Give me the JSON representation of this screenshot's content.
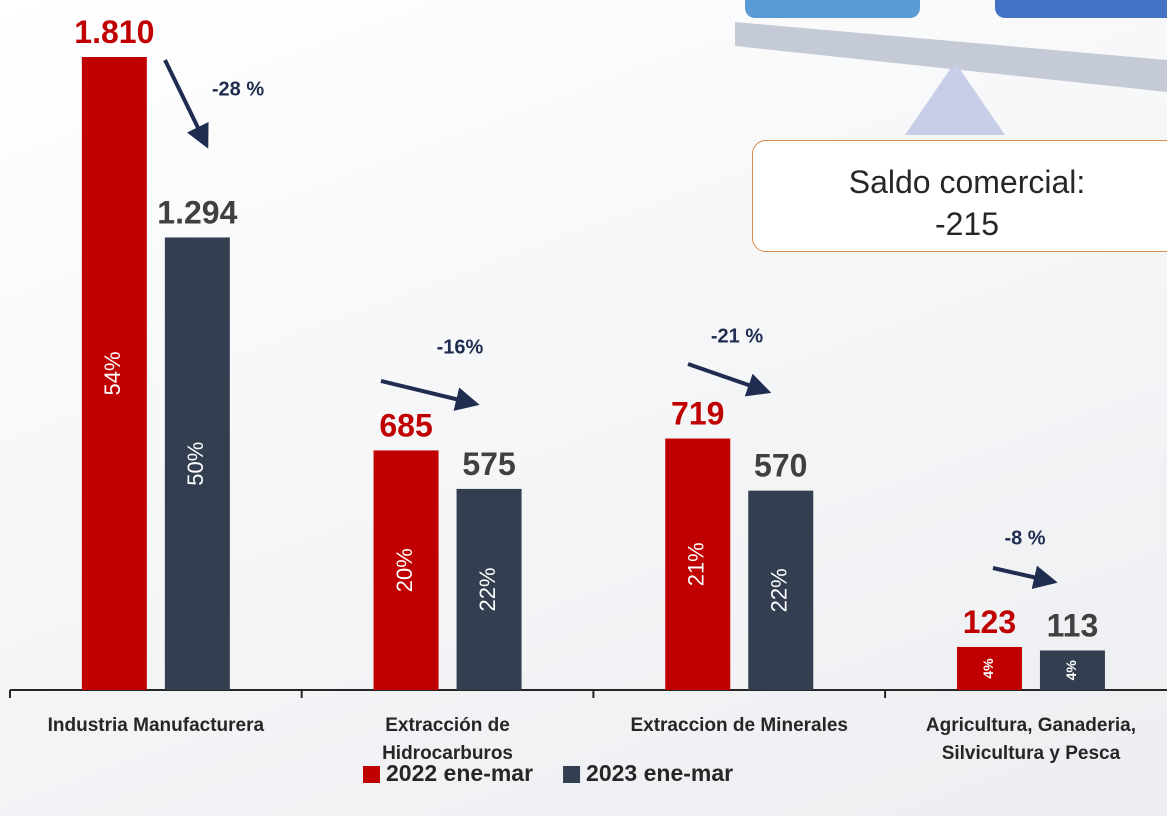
{
  "chart_data": {
    "type": "bar",
    "categories": [
      "Industria Manufacturera",
      "Extracción de Hidrocarburos",
      "Extraccion de Minerales",
      "Agricultura, Ganaderia, Silvicultura y Pesca"
    ],
    "series": [
      {
        "name": "2022 ene-mar",
        "color": "#c00000",
        "label_color": "#c00000",
        "values": [
          1810,
          685,
          719,
          123
        ],
        "value_labels": [
          "1.810",
          "685",
          "719",
          "123"
        ],
        "share_labels": [
          "54%",
          "20%",
          "21%",
          "4%"
        ]
      },
      {
        "name": "2023 ene-mar",
        "color": "#333f50",
        "label_color": "#404040",
        "values": [
          1294,
          575,
          570,
          113
        ],
        "value_labels": [
          "1.294",
          "575",
          "570",
          "113"
        ],
        "share_labels": [
          "50%",
          "22%",
          "22%",
          "4%"
        ]
      }
    ],
    "changes": [
      "-28 %",
      "-16%",
      "-21 %",
      "-8 %"
    ],
    "balance": {
      "label": "Saldo comercial:",
      "value": "-215"
    }
  }
}
